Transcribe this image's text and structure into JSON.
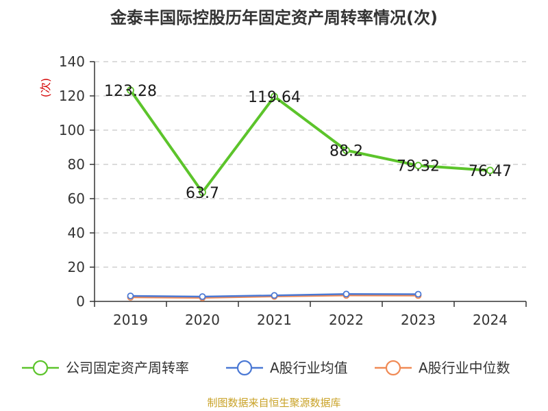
{
  "title": "金泰丰国际控股历年固定资产周转率情况(次)",
  "source": "制图数据来自恒生聚源数据库",
  "chart_data": {
    "type": "line",
    "title": "金泰丰国际控股历年固定资产周转率情况(次)",
    "ylabel": "(次)",
    "xlabel": "",
    "categories": [
      "2019",
      "2020",
      "2021",
      "2022",
      "2023",
      "2024"
    ],
    "ylim": [
      0,
      140
    ],
    "yticks": [
      0,
      20,
      40,
      60,
      80,
      100,
      120,
      140
    ],
    "grid": "horizontal-dashed",
    "legend_position": "bottom",
    "series": [
      {
        "name": "公司固定资产周转率",
        "color": "#5cc42b",
        "values": [
          123.28,
          63.7,
          119.64,
          88.2,
          79.32,
          76.47
        ],
        "labels": [
          "123.28",
          "63.7",
          "119.64",
          "88.2",
          "79.32",
          "76.47"
        ]
      },
      {
        "name": "A股行业均值",
        "color": "#4a78d4",
        "values": [
          3.2,
          2.8,
          3.5,
          4.3,
          4.2,
          null
        ]
      },
      {
        "name": "A股行业中位数",
        "color": "#f08a55",
        "values": [
          2.4,
          2.1,
          2.9,
          3.5,
          3.4,
          null
        ]
      }
    ]
  }
}
